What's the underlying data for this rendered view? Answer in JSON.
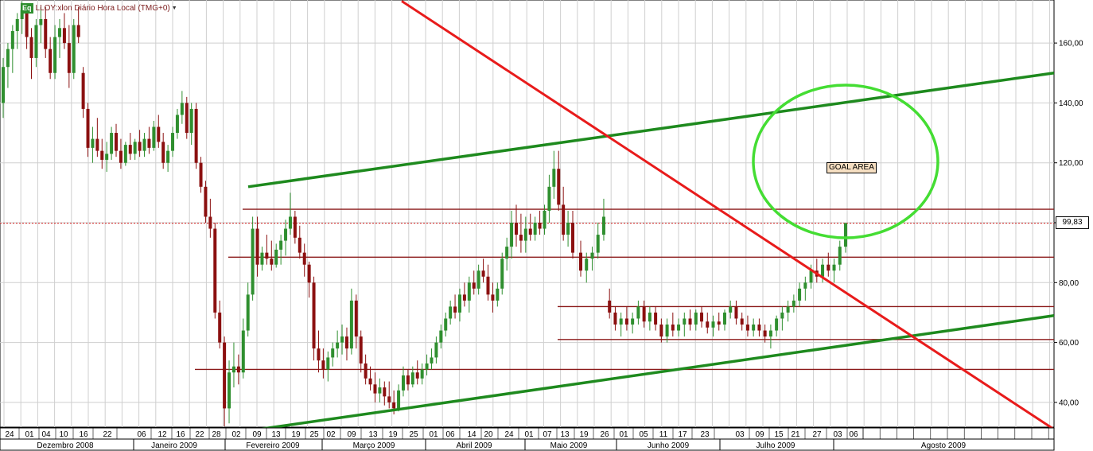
{
  "header": {
    "badge": "Eq",
    "title": "LLOY:xlon Diário Hora Local (TMG+0)"
  },
  "annotation": {
    "goal_area": "GOAL AREA"
  },
  "last_price": {
    "label": "99,83",
    "value": 99.83
  },
  "colors": {
    "candle_up": "#2f8f2f",
    "candle_down": "#8b1010",
    "trend_green": "#1e8a1e",
    "trend_red": "#e81b1b",
    "support_lines": "#8b1a1a",
    "goal_circle": "#44dd33",
    "grid": "#cfcfcf"
  },
  "chart_data": {
    "type": "candlestick",
    "symbol": "LLOY",
    "y_axis": {
      "ticks": [
        40,
        60,
        80,
        100,
        120,
        140,
        160
      ],
      "tick_labels": [
        "40,00",
        "60,00",
        "80,00",
        "100,00",
        "120,00",
        "140,00",
        "160,00"
      ],
      "ylim": [
        33,
        174
      ]
    },
    "x_axis": {
      "day_labels": [
        "24",
        "01",
        "04",
        "10",
        "16",
        "22",
        "06",
        "12",
        "16",
        "22",
        "28",
        "02",
        "09",
        "13",
        "19",
        "25",
        "02",
        "09",
        "13",
        "19",
        "25",
        "01",
        "06",
        "14",
        "20",
        "24",
        "01",
        "07",
        "13",
        "19",
        "26",
        "01",
        "05",
        "11",
        "17",
        "23",
        "03",
        "09",
        "15",
        "21",
        "27",
        "03",
        "06"
      ],
      "month_labels": [
        "Dezembro 2008",
        "Janeiro 2009",
        "Fevereiro 2009",
        "Março 2009",
        "Abril 2009",
        "Maio 2009",
        "Junho 2009",
        "Julho 2009",
        "Agosto 2009"
      ]
    },
    "grid": true,
    "horizontal_levels": [
      104.5,
      88.5,
      72,
      61,
      51
    ],
    "trend_lines": [
      {
        "name": "upper-channel",
        "color": "green",
        "from": [
          "2009-02-09",
          112
        ],
        "to": [
          "2009-08-31",
          150
        ]
      },
      {
        "name": "lower-channel",
        "color": "green",
        "from": [
          "2009-02-09",
          30.5
        ],
        "to": [
          "2009-08-31",
          69
        ]
      },
      {
        "name": "downtrend",
        "color": "red",
        "from": [
          "2008-12-29",
          174
        ],
        "to": [
          "2009-08-31",
          31
        ]
      }
    ],
    "current_price_line": 99.83,
    "target_zone": {
      "label": "GOAL AREA",
      "center_date": "2009-07-29",
      "center_price": 120,
      "approx_price_range": [
        96,
        145
      ]
    },
    "candles": [
      [
        140,
        155,
        135,
        152
      ],
      [
        152,
        160,
        145,
        158
      ],
      [
        158,
        166,
        150,
        164
      ],
      [
        164,
        170,
        158,
        168
      ],
      [
        168,
        174,
        163,
        171
      ],
      [
        170,
        172,
        158,
        162
      ],
      [
        162,
        165,
        148,
        155
      ],
      [
        155,
        168,
        152,
        166
      ],
      [
        166,
        172,
        160,
        168
      ],
      [
        168,
        172,
        155,
        158
      ],
      [
        158,
        162,
        148,
        150
      ],
      [
        150,
        166,
        148,
        162
      ],
      [
        162,
        168,
        155,
        165
      ],
      [
        165,
        170,
        158,
        160
      ],
      [
        160,
        166,
        145,
        150
      ],
      [
        150,
        168,
        148,
        166
      ],
      [
        166,
        172,
        160,
        162
      ],
      [
        150,
        152,
        135,
        138
      ],
      [
        138,
        140,
        122,
        125
      ],
      [
        125,
        132,
        120,
        128
      ],
      [
        128,
        135,
        122,
        124
      ],
      [
        124,
        128,
        118,
        121
      ],
      [
        121,
        127,
        117,
        123
      ],
      [
        123,
        132,
        121,
        130
      ],
      [
        130,
        133,
        122,
        124
      ],
      [
        124,
        128,
        118,
        120
      ],
      [
        120,
        127,
        119,
        126
      ],
      [
        126,
        130,
        121,
        123
      ],
      [
        123,
        128,
        121,
        127
      ],
      [
        127,
        131,
        122,
        124
      ],
      [
        124,
        130,
        122,
        128
      ],
      [
        128,
        132,
        123,
        125
      ],
      [
        125,
        134,
        124,
        132
      ],
      [
        132,
        136,
        125,
        127
      ],
      [
        127,
        130,
        118,
        120
      ],
      [
        120,
        126,
        117,
        124
      ],
      [
        124,
        132,
        122,
        130
      ],
      [
        130,
        138,
        128,
        136
      ],
      [
        136,
        144,
        133,
        140
      ],
      [
        140,
        142,
        128,
        130
      ],
      [
        130,
        140,
        126,
        138
      ],
      [
        138,
        140,
        118,
        120
      ],
      [
        120,
        122,
        110,
        112
      ],
      [
        112,
        114,
        100,
        102
      ],
      [
        102,
        108,
        95,
        98
      ],
      [
        98,
        100,
        68,
        70
      ],
      [
        70,
        74,
        58,
        60
      ],
      [
        60,
        62,
        32,
        38
      ],
      [
        38,
        54,
        33,
        50
      ],
      [
        50,
        60,
        45,
        52
      ],
      [
        52,
        56,
        46,
        50
      ],
      [
        50,
        68,
        48,
        64
      ],
      [
        64,
        80,
        62,
        76
      ],
      [
        76,
        102,
        74,
        98
      ],
      [
        98,
        102,
        82,
        86
      ],
      [
        86,
        92,
        84,
        90
      ],
      [
        90,
        96,
        86,
        88
      ],
      [
        88,
        94,
        84,
        86
      ],
      [
        86,
        93,
        85,
        91
      ],
      [
        91,
        96,
        86,
        94
      ],
      [
        94,
        101,
        89,
        98
      ],
      [
        98,
        110,
        96,
        102
      ],
      [
        102,
        104,
        93,
        95
      ],
      [
        95,
        99,
        88,
        90
      ],
      [
        90,
        93,
        82,
        86
      ],
      [
        86,
        87,
        75,
        80
      ],
      [
        80,
        82,
        54,
        58
      ],
      [
        58,
        64,
        50,
        54
      ],
      [
        54,
        58,
        48,
        51
      ],
      [
        51,
        57,
        47,
        55
      ],
      [
        55,
        60,
        52,
        58
      ],
      [
        58,
        64,
        55,
        60
      ],
      [
        60,
        66,
        56,
        62
      ],
      [
        62,
        65,
        54,
        58
      ],
      [
        58,
        78,
        56,
        74
      ],
      [
        74,
        76,
        58,
        62
      ],
      [
        62,
        64,
        50,
        53
      ],
      [
        53,
        56,
        46,
        48
      ],
      [
        48,
        52,
        44,
        46
      ],
      [
        46,
        50,
        40,
        43
      ],
      [
        43,
        48,
        40,
        45
      ],
      [
        45,
        47,
        39,
        42
      ],
      [
        42,
        47,
        38,
        40
      ],
      [
        40,
        44,
        36,
        38
      ],
      [
        38,
        46,
        37,
        44
      ],
      [
        44,
        52,
        42,
        49
      ],
      [
        49,
        51,
        44,
        46
      ],
      [
        46,
        52,
        45,
        50
      ],
      [
        50,
        54,
        46,
        48
      ],
      [
        48,
        53,
        46,
        51
      ],
      [
        51,
        56,
        49,
        53
      ],
      [
        53,
        58,
        51,
        55
      ],
      [
        55,
        62,
        53,
        60
      ],
      [
        60,
        66,
        58,
        64
      ],
      [
        64,
        70,
        62,
        68
      ],
      [
        68,
        74,
        66,
        72
      ],
      [
        72,
        76,
        68,
        70
      ],
      [
        70,
        78,
        67,
        76
      ],
      [
        76,
        80,
        72,
        74
      ],
      [
        74,
        82,
        70,
        80
      ],
      [
        80,
        84,
        76,
        78
      ],
      [
        78,
        86,
        76,
        84
      ],
      [
        84,
        88,
        80,
        82
      ],
      [
        82,
        86,
        74,
        76
      ],
      [
        76,
        80,
        70,
        74
      ],
      [
        74,
        80,
        72,
        78
      ],
      [
        78,
        90,
        76,
        88
      ],
      [
        88,
        95,
        84,
        92
      ],
      [
        92,
        104,
        88,
        100
      ],
      [
        100,
        106,
        92,
        96
      ],
      [
        96,
        103,
        90,
        94
      ],
      [
        94,
        102,
        90,
        98
      ],
      [
        98,
        103,
        94,
        96
      ],
      [
        96,
        102,
        94,
        100
      ],
      [
        100,
        104,
        96,
        98
      ],
      [
        98,
        106,
        96,
        104
      ],
      [
        104,
        116,
        100,
        112
      ],
      [
        112,
        124,
        108,
        118
      ],
      [
        118,
        124,
        104,
        106
      ],
      [
        106,
        112,
        94,
        96
      ],
      [
        96,
        104,
        92,
        100
      ],
      [
        100,
        104,
        88,
        90
      ],
      [
        90,
        94,
        82,
        84
      ],
      [
        84,
        90,
        80,
        88
      ],
      [
        88,
        92,
        84,
        90
      ],
      [
        90,
        100,
        88,
        96
      ],
      [
        96,
        108,
        94,
        102
      ],
      [
        74,
        78,
        68,
        70
      ],
      [
        70,
        72,
        64,
        66
      ],
      [
        66,
        70,
        62,
        68
      ],
      [
        68,
        72,
        64,
        66
      ],
      [
        66,
        70,
        63,
        68
      ],
      [
        68,
        74,
        66,
        72
      ],
      [
        72,
        74,
        65,
        67
      ],
      [
        67,
        72,
        64,
        70
      ],
      [
        70,
        72,
        64,
        66
      ],
      [
        66,
        68,
        60,
        62
      ],
      [
        62,
        68,
        60,
        66
      ],
      [
        66,
        70,
        62,
        64
      ],
      [
        64,
        68,
        62,
        66
      ],
      [
        66,
        70,
        62,
        68
      ],
      [
        68,
        71,
        64,
        66
      ],
      [
        66,
        71,
        64,
        70
      ],
      [
        70,
        72,
        65,
        67
      ],
      [
        67,
        70,
        63,
        65
      ],
      [
        65,
        69,
        62,
        67
      ],
      [
        67,
        70,
        64,
        66
      ],
      [
        66,
        71,
        64,
        70
      ],
      [
        70,
        74,
        68,
        72
      ],
      [
        72,
        74,
        66,
        68
      ],
      [
        68,
        70,
        64,
        66
      ],
      [
        66,
        69,
        62,
        64
      ],
      [
        64,
        68,
        62,
        66
      ],
      [
        66,
        68,
        62,
        64
      ],
      [
        64,
        66,
        60,
        62
      ],
      [
        62,
        66,
        58,
        64
      ],
      [
        64,
        69,
        62,
        68
      ],
      [
        68,
        72,
        64,
        70
      ],
      [
        70,
        74,
        67,
        72
      ],
      [
        72,
        76,
        70,
        74
      ],
      [
        74,
        80,
        72,
        78
      ],
      [
        78,
        82,
        74,
        80
      ],
      [
        80,
        86,
        78,
        84
      ],
      [
        84,
        88,
        80,
        82
      ],
      [
        82,
        88,
        80,
        86
      ],
      [
        86,
        90,
        82,
        84
      ],
      [
        84,
        88,
        80,
        86
      ],
      [
        86,
        94,
        84,
        92
      ],
      [
        92,
        100,
        90,
        99.83
      ]
    ]
  }
}
